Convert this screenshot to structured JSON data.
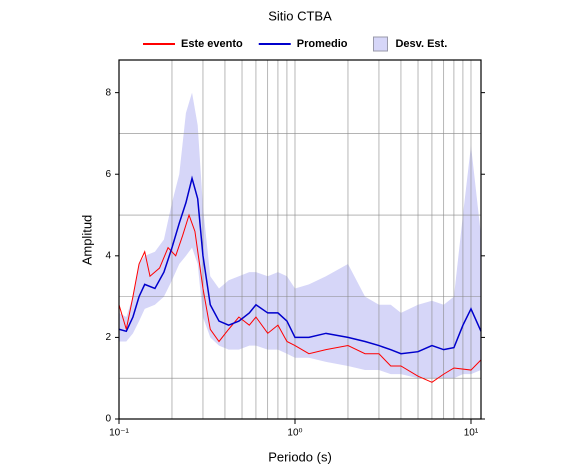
{
  "chart_data": {
    "type": "line",
    "title": "Sitio CTBA",
    "xlabel": "Periodo (s)",
    "ylabel": "Amplitud",
    "xscale": "log",
    "xlim": [
      0.1,
      11.4
    ],
    "ylim": [
      0,
      8.8
    ],
    "xticks": [
      {
        "value": 0.1,
        "label": "10⁻¹"
      },
      {
        "value": 1,
        "label": "10⁰"
      },
      {
        "value": 10,
        "label": "10¹"
      }
    ],
    "yticks": [
      0,
      2,
      4,
      6,
      8
    ],
    "xgrid": [
      0.2,
      0.3,
      0.4,
      0.5,
      0.6,
      0.7,
      0.8,
      0.9,
      1,
      2,
      3,
      4,
      5,
      6,
      7,
      8,
      9,
      10
    ],
    "ygrid": [
      1,
      3,
      5,
      7
    ],
    "legend": "top",
    "band": {
      "name": "Desv. Est.",
      "color": "#d6d6f8",
      "x": [
        0.1,
        0.11,
        0.12,
        0.13,
        0.14,
        0.16,
        0.18,
        0.2,
        0.22,
        0.24,
        0.26,
        0.28,
        0.3,
        0.33,
        0.37,
        0.42,
        0.48,
        0.55,
        0.6,
        0.7,
        0.8,
        0.9,
        1.0,
        1.2,
        1.5,
        2.0,
        2.5,
        3.0,
        3.5,
        4.0,
        5.0,
        6.0,
        7.0,
        8.0,
        9.0,
        10,
        11.4
      ],
      "lower": [
        1.9,
        1.9,
        2.1,
        2.4,
        2.7,
        2.8,
        3.0,
        3.4,
        3.8,
        4.0,
        4.2,
        3.8,
        2.5,
        2.0,
        1.8,
        1.7,
        1.7,
        1.8,
        1.8,
        1.7,
        1.7,
        1.6,
        1.5,
        1.5,
        1.4,
        1.3,
        1.2,
        1.2,
        1.1,
        1.1,
        1.0,
        1.0,
        1.0,
        1.0,
        1.1,
        1.1,
        1.2
      ],
      "upper": [
        2.6,
        2.5,
        3.0,
        3.8,
        4.0,
        4.1,
        4.4,
        5.3,
        6.0,
        7.5,
        8.0,
        7.2,
        5.2,
        3.5,
        3.2,
        3.4,
        3.5,
        3.6,
        3.6,
        3.5,
        3.6,
        3.5,
        3.2,
        3.3,
        3.5,
        3.8,
        3.0,
        2.8,
        2.8,
        2.6,
        2.8,
        2.9,
        2.8,
        3.0,
        5.0,
        6.7,
        4.5
      ]
    },
    "series": [
      {
        "name": "Este evento",
        "color": "#ff0000",
        "x": [
          0.1,
          0.11,
          0.12,
          0.13,
          0.14,
          0.15,
          0.17,
          0.19,
          0.21,
          0.23,
          0.25,
          0.27,
          0.3,
          0.33,
          0.37,
          0.42,
          0.48,
          0.55,
          0.6,
          0.7,
          0.8,
          0.9,
          1.0,
          1.2,
          1.5,
          2.0,
          2.5,
          3.0,
          3.5,
          4.0,
          5.0,
          6.0,
          7.0,
          8.0,
          10,
          11.4
        ],
        "values": [
          2.8,
          2.2,
          3.0,
          3.8,
          4.1,
          3.5,
          3.7,
          4.2,
          4.0,
          4.5,
          5.0,
          4.6,
          3.2,
          2.2,
          1.9,
          2.2,
          2.5,
          2.3,
          2.5,
          2.1,
          2.3,
          1.9,
          1.8,
          1.6,
          1.7,
          1.8,
          1.6,
          1.6,
          1.3,
          1.3,
          1.05,
          0.9,
          1.1,
          1.25,
          1.2,
          1.45
        ]
      },
      {
        "name": "Promedio",
        "color": "#0000cc",
        "x": [
          0.1,
          0.11,
          0.12,
          0.13,
          0.14,
          0.16,
          0.18,
          0.2,
          0.22,
          0.24,
          0.26,
          0.28,
          0.3,
          0.33,
          0.37,
          0.42,
          0.48,
          0.55,
          0.6,
          0.7,
          0.8,
          0.9,
          1.0,
          1.2,
          1.5,
          2.0,
          2.5,
          3.0,
          3.5,
          4.0,
          5.0,
          6.0,
          7.0,
          8.0,
          9.0,
          10,
          11.4
        ],
        "values": [
          2.2,
          2.15,
          2.5,
          3.0,
          3.3,
          3.2,
          3.6,
          4.2,
          4.8,
          5.3,
          5.9,
          5.4,
          4.0,
          2.8,
          2.4,
          2.3,
          2.4,
          2.6,
          2.8,
          2.6,
          2.6,
          2.4,
          2.0,
          2.0,
          2.1,
          2.0,
          1.9,
          1.8,
          1.7,
          1.6,
          1.65,
          1.8,
          1.7,
          1.75,
          2.3,
          2.7,
          2.15
        ]
      }
    ]
  }
}
